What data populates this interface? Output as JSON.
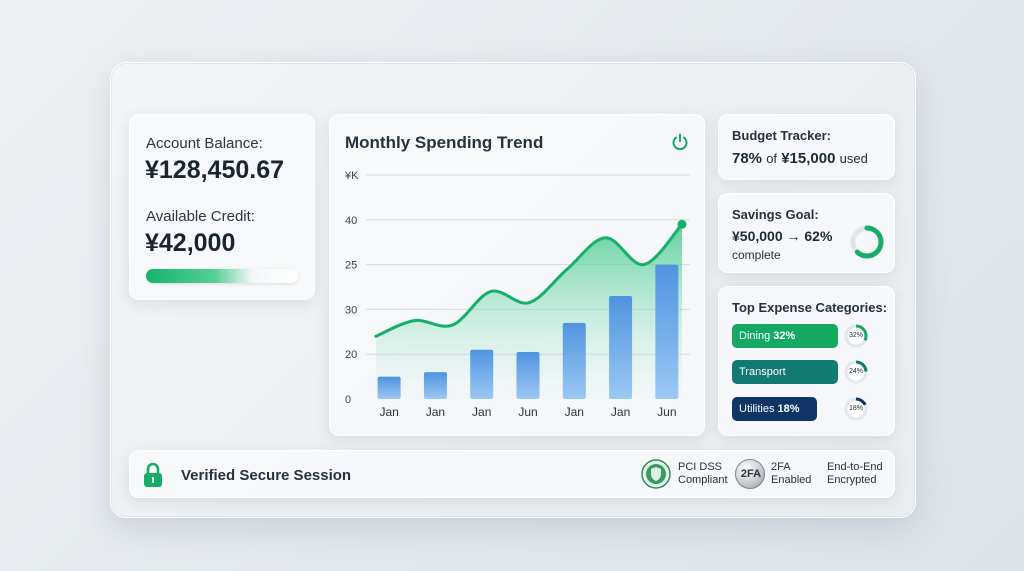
{
  "balance": {
    "account_label": "Account Balance:",
    "account_value": "¥128,450.67",
    "credit_label": "Available Credit:",
    "credit_value": "¥42,000"
  },
  "chart": {
    "title": "Monthly Spending Trend",
    "icon": "power-icon"
  },
  "chart_data": {
    "type": "bar",
    "title": "Monthly Spending Trend",
    "categories": [
      "Jan",
      "Jan",
      "Jan",
      "Jun",
      "Jan",
      "Jan",
      "Jun"
    ],
    "y_tick_labels": [
      "0",
      "20",
      "30",
      "25",
      "40",
      "¥K"
    ],
    "series": [
      {
        "values": [
          10,
          12,
          22,
          21,
          34,
          46,
          60
        ]
      }
    ],
    "trend_line": [
      28,
      35,
      33,
      48,
      43,
      58,
      72,
      60,
      78
    ],
    "ylim": [
      0,
      100
    ],
    "grid": true,
    "colors": {
      "bar": "#5aa3e6",
      "line": "#16b06a"
    }
  },
  "budget": {
    "title": "Budget Tracker:",
    "pct": "78%",
    "of": "of",
    "amount": "¥15,000",
    "used": "used"
  },
  "savings": {
    "title": "Savings Goal:",
    "line": "¥50,000 → 62%",
    "complete": "complete",
    "progress": 0.62
  },
  "expenses": {
    "title": "Top Expense Categories:",
    "items": [
      {
        "label": "Dining",
        "pct": "32%",
        "ring": "32%",
        "color": "#14a862",
        "fraction": 0.32
      },
      {
        "label": "Transport",
        "pct": "",
        "ring": "24%",
        "color": "#117a72",
        "fraction": 0.24
      },
      {
        "label": "Utilities",
        "pct": "18%",
        "ring": "18%",
        "color": "#0e3566",
        "fraction": 0.18
      }
    ]
  },
  "footer": {
    "secure": "Verified Secure Session",
    "badges": [
      {
        "line1": "PCI DSS",
        "line2": "Compliant",
        "icon": "pci-shield-icon"
      },
      {
        "line1": "2FA",
        "line2": "Enabled",
        "icon": "2fa-badge-icon",
        "glyph": "2FA"
      },
      {
        "line1": "End-to-End",
        "line2": "Encrypted",
        "icon": ""
      }
    ]
  }
}
